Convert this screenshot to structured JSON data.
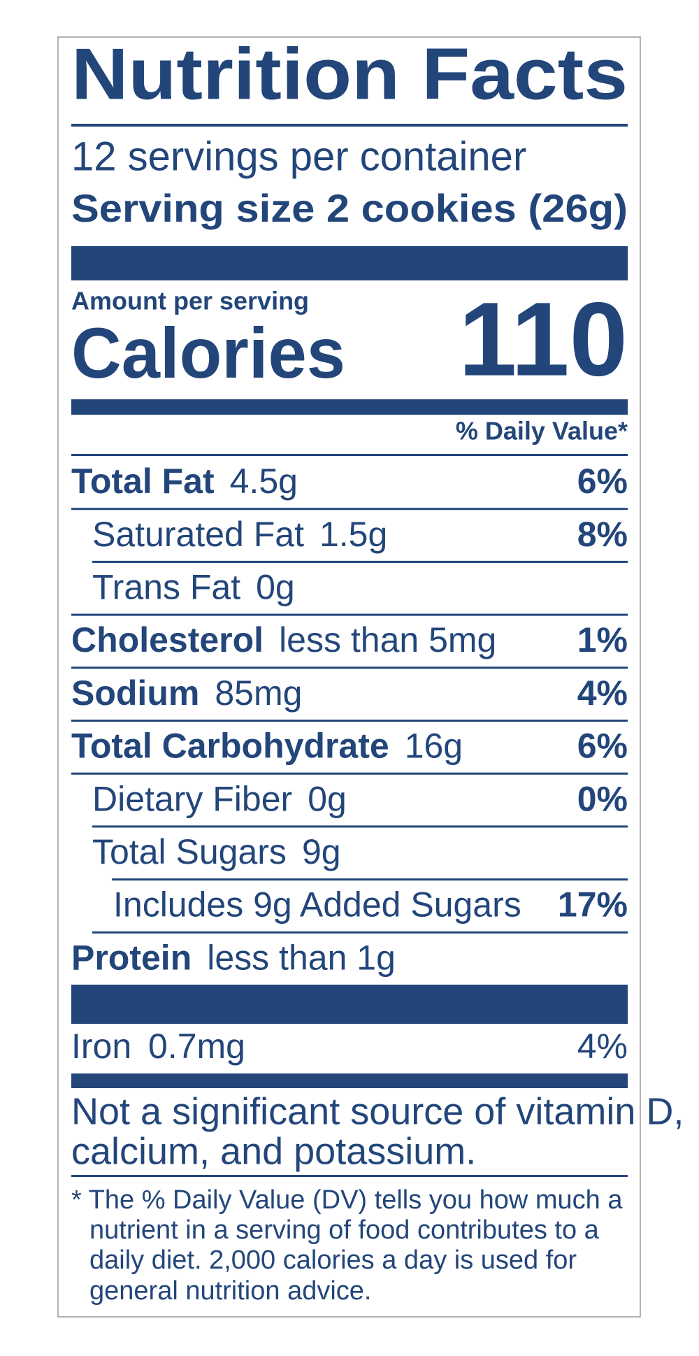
{
  "label": {
    "title": "Nutrition Facts",
    "servings": "12 servings per container",
    "serving_size": "Serving size 2 cookies (26g)",
    "amount_per_serving": "Amount per serving",
    "calories_label": "Calories",
    "calories_value": "110",
    "daily_value_header": "% Daily Value*",
    "rows": [
      {
        "name": "Total Fat",
        "amount": "4.5g",
        "dv": "6%"
      },
      {
        "name": "Saturated Fat",
        "amount": "1.5g",
        "dv": "8%"
      },
      {
        "name": "Trans Fat",
        "amount": "0g"
      },
      {
        "name": "Cholesterol",
        "amount": "less than 5mg",
        "dv": "1%"
      },
      {
        "name": "Sodium",
        "amount": "85mg",
        "dv": "4%"
      },
      {
        "name": "Total Carbohydrate",
        "amount": "16g",
        "dv": "6%"
      },
      {
        "name": "Dietary Fiber",
        "amount": "0g",
        "dv": "0%"
      },
      {
        "name": "Total Sugars",
        "amount": "9g"
      },
      {
        "name": "Includes 9g Added Sugars",
        "dv": "17%"
      },
      {
        "name": "Protein",
        "amount": "less than 1g"
      }
    ],
    "iron": {
      "name": "Iron",
      "amount": "0.7mg",
      "dv": "4%"
    },
    "note": [
      "Not a significant source of vitamin D,",
      "calcium, and potassium."
    ],
    "footnote": [
      "* The % Daily Value (DV) tells you how much a",
      "nutrient in a serving of food contributes to a",
      "daily diet. 2,000 calories a day is used for",
      "general nutrition advice."
    ]
  }
}
